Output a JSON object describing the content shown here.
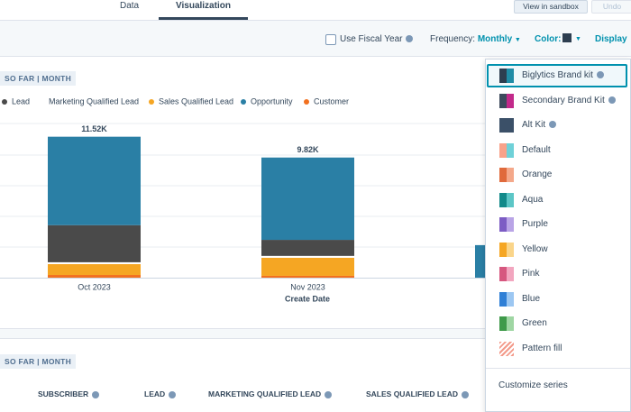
{
  "tabs": [
    "Data",
    "Visualization"
  ],
  "active_tab": 1,
  "buttons": {
    "sandbox": "View in sandbox",
    "undo": "Undo"
  },
  "toolbar": {
    "fiscal_year": "Use Fiscal Year",
    "frequency_label": "Frequency:",
    "frequency_value": "Monthly",
    "color_label": "Color:",
    "display": "Display"
  },
  "chart_data": {
    "type": "bar",
    "stacked": true,
    "tag": "SO FAR | MONTH",
    "categories": [
      "Oct 2023",
      "Nov 2023",
      null
    ],
    "x_label": "Create Date",
    "total_labels": [
      "11.52K",
      "9.82K",
      null
    ],
    "series": [
      {
        "name": "Customer",
        "color": "#f2701f",
        "values": [
          220,
          150,
          null
        ]
      },
      {
        "name": "Sales Qualified Lead",
        "color": "#f5a623",
        "values": [
          890,
          1480,
          null
        ]
      },
      {
        "name": "Marketing Qualified Lead",
        "color": "#ffffff",
        "values": [
          150,
          150,
          null
        ]
      },
      {
        "name": "Lead",
        "color": "#4a4a4a",
        "values": [
          3030,
          1310,
          null
        ]
      },
      {
        "name": "Opportunity",
        "color": "#2a7fa5",
        "values": [
          7230,
          6730,
          2660
        ]
      }
    ],
    "legend_order": [
      3,
      2,
      1,
      4,
      0
    ],
    "ylim": [
      0,
      12600
    ],
    "grid": true
  },
  "table": {
    "tag": "SO FAR | MONTH",
    "headers": [
      "SUBSCRIBER",
      "LEAD",
      "MARKETING QUALIFIED LEAD",
      "SALES QUALIFIED LEAD"
    ]
  },
  "color_menu": {
    "items": [
      {
        "label": "Biglytics Brand kit",
        "colors": [
          "#2d3e50",
          "#1f8ca6"
        ],
        "info": true,
        "selected": true
      },
      {
        "label": "Secondary Brand Kit",
        "colors": [
          "#3d4a5c",
          "#c2298a"
        ],
        "info": true
      },
      {
        "label": "Alt Kit",
        "colors": [
          "#3b5068",
          "#3b5068"
        ],
        "info": true
      },
      {
        "label": "Default",
        "colors": [
          "#f8a28a",
          "#6fd1d8"
        ]
      },
      {
        "label": "Orange",
        "colors": [
          "#e06a3c",
          "#f4a88a"
        ]
      },
      {
        "label": "Aqua",
        "colors": [
          "#128a8a",
          "#5cc6c6"
        ]
      },
      {
        "label": "Purple",
        "colors": [
          "#7c5cc4",
          "#b9a4e6"
        ]
      },
      {
        "label": "Yellow",
        "colors": [
          "#f5a623",
          "#fad58a"
        ]
      },
      {
        "label": "Pink",
        "colors": [
          "#d6577f",
          "#f2a6bf"
        ]
      },
      {
        "label": "Blue",
        "colors": [
          "#2f7fd6",
          "#9cc7f2"
        ]
      },
      {
        "label": "Green",
        "colors": [
          "#3f9a4a",
          "#9fd6a3"
        ]
      },
      {
        "label": "Pattern fill",
        "colors": [
          "#f39a8a",
          "#ffffff"
        ],
        "pattern": true
      }
    ],
    "footer": "Customize series"
  }
}
